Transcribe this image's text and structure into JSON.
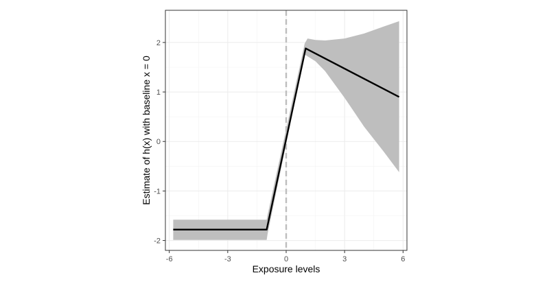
{
  "chart_data": {
    "type": "line",
    "title": "",
    "xlabel": "Exposure levels",
    "ylabel": "Estimate of h(x) with baseline x = 0",
    "xlim": [
      -6.2,
      6.2
    ],
    "ylim": [
      -2.2,
      2.65
    ],
    "x_ticks": [
      -6,
      -3,
      0,
      3,
      6
    ],
    "x_tick_labels": [
      "-6",
      "-3",
      "0",
      "3",
      "6"
    ],
    "y_ticks": [
      -2,
      -1,
      0,
      1,
      2
    ],
    "y_tick_labels": [
      "-2",
      "-1",
      "0",
      "1",
      "2"
    ],
    "grid": true,
    "reference_line": {
      "x": 0,
      "style": "dashed",
      "color": "#bdbdbd"
    },
    "colors": {
      "line": "#000000",
      "band": "#bebebe",
      "grid": "#ebebeb",
      "border": "#333333"
    },
    "series": [
      {
        "x": [
          -5.8,
          -1.0,
          1.0,
          5.8
        ],
        "y": [
          -1.78,
          -1.78,
          1.88,
          0.9
        ]
      }
    ],
    "confidence_band": {
      "x": [
        -5.8,
        -1.0,
        -0.95,
        0.95,
        1.1,
        1.5,
        2.0,
        3.0,
        4.0,
        5.0,
        5.8
      ],
      "upper": [
        -1.58,
        -1.58,
        -1.48,
        1.98,
        2.08,
        2.05,
        2.04,
        2.08,
        2.18,
        2.32,
        2.43
      ],
      "lower": [
        -1.99,
        -1.99,
        -1.86,
        1.76,
        1.72,
        1.62,
        1.42,
        0.88,
        0.3,
        -0.2,
        -0.62
      ]
    }
  }
}
